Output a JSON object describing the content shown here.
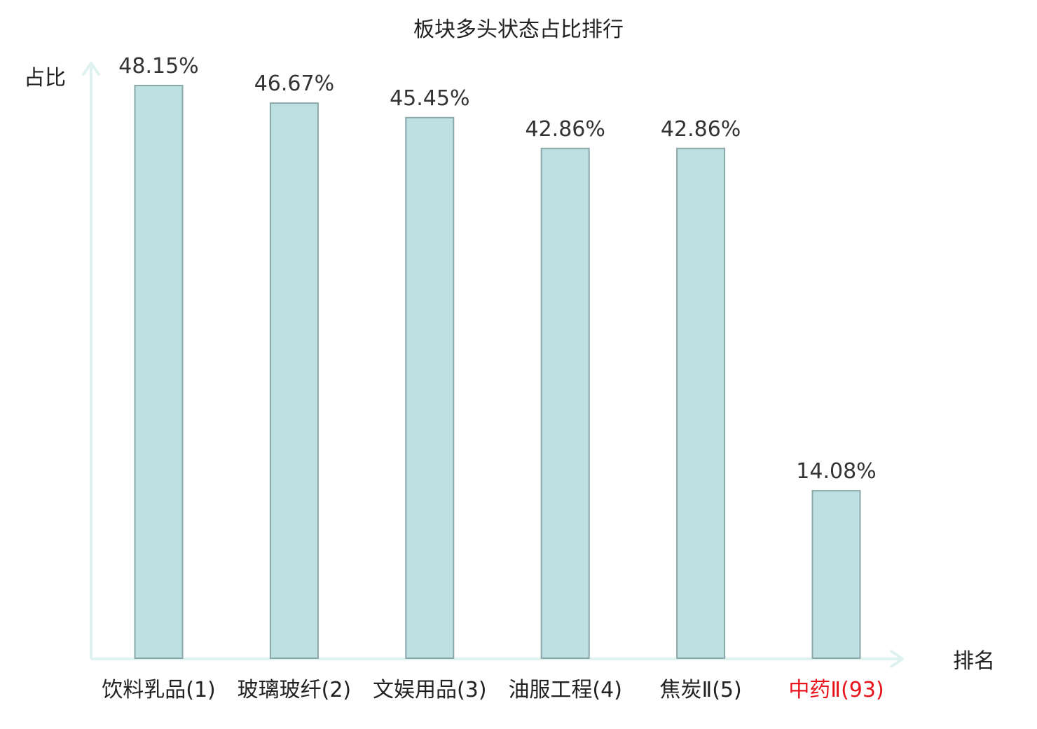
{
  "chart_data": {
    "type": "bar",
    "title": "板块多头状态占比排行",
    "ylabel": "占比",
    "xlabel": "排名",
    "categories": [
      "饮料乳品(1)",
      "玻璃玻纤(2)",
      "文娱用品(3)",
      "油服工程(4)",
      "焦炭Ⅱ(5)",
      "中药Ⅱ(93)"
    ],
    "values": [
      48.15,
      46.67,
      45.45,
      42.86,
      42.86,
      14.08
    ],
    "value_labels": [
      "48.15%",
      "46.67%",
      "45.45%",
      "42.86%",
      "42.86%",
      "14.08%"
    ],
    "highlight_index": 5,
    "ylim": [
      0,
      48.15
    ],
    "grid": false,
    "legend": "none",
    "colors": {
      "bar_fill": "#bde0e3",
      "bar_stroke": "#8aa8aa",
      "axis": "#e0f2ef",
      "label": "#222222",
      "value_label": "#333333",
      "highlight_label": "#e8141c"
    }
  }
}
